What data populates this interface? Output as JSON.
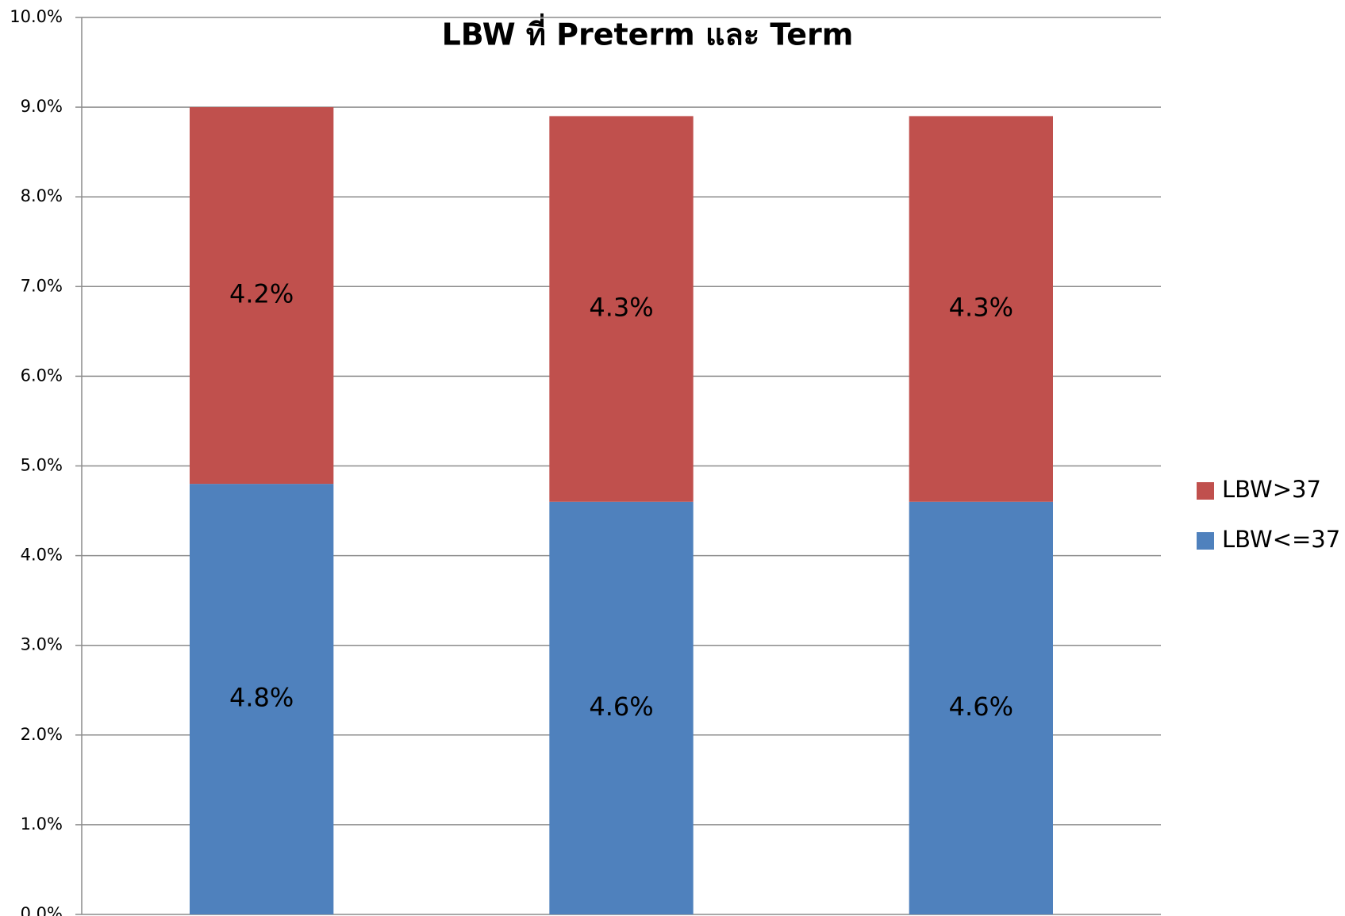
{
  "chart_data": {
    "type": "stacked_bar",
    "title": "LBW ที่ Preterm และ Term",
    "categories": [
      null,
      null,
      null
    ],
    "series": [
      {
        "name": "LBW<=37",
        "color": "#4f81bd",
        "values": [
          4.8,
          4.6,
          4.6
        ],
        "value_labels": [
          "4.8%",
          "4.6%",
          "4.6%"
        ]
      },
      {
        "name": "LBW>37",
        "color": "#c0504d",
        "values": [
          4.2,
          4.3,
          4.3
        ],
        "value_labels": [
          "4.2%",
          "4.3%",
          "4.3%"
        ]
      }
    ],
    "ylim": [
      0,
      10
    ],
    "yticks": [
      {
        "value": 0,
        "label": "0.0%"
      },
      {
        "value": 1,
        "label": "1.0%"
      },
      {
        "value": 2,
        "label": "2.0%"
      },
      {
        "value": 3,
        "label": "3.0%"
      },
      {
        "value": 4,
        "label": "4.0%"
      },
      {
        "value": 5,
        "label": "5.0%"
      },
      {
        "value": 6,
        "label": "6.0%"
      },
      {
        "value": 7,
        "label": "7.0%"
      },
      {
        "value": 8,
        "label": "8.0%"
      },
      {
        "value": 9,
        "label": "9.0%"
      },
      {
        "value": 10,
        "label": "10.0%"
      }
    ],
    "grid": true,
    "legend": "right"
  }
}
